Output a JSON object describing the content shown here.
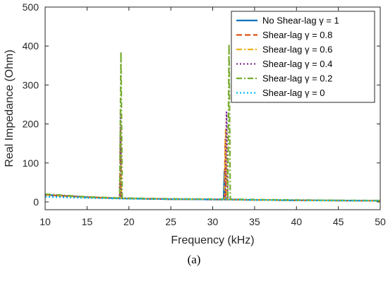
{
  "caption": "(a)",
  "chart_data": {
    "type": "line",
    "xlabel": "Frequency (kHz)",
    "ylabel": "Real Impedance (Ohm)",
    "xlim": [
      10,
      50
    ],
    "ylim": [
      -20,
      500
    ],
    "xticks": [
      10,
      15,
      20,
      25,
      30,
      35,
      40,
      45,
      50
    ],
    "yticks": [
      0,
      100,
      200,
      300,
      400,
      500
    ],
    "grid": false,
    "legend_position": "top-right",
    "series": [
      {
        "name": "No Shear-lag γ = 1",
        "color": "#0072BD",
        "dash": "solid",
        "x": [
          10,
          15,
          18.9,
          19.0,
          19.1,
          25,
          31.3,
          31.4,
          31.5,
          35,
          40,
          45,
          50
        ],
        "y": [
          18,
          12,
          9,
          9,
          9,
          7,
          6,
          80,
          6,
          5,
          4,
          3.5,
          3
        ]
      },
      {
        "name": "Shear-lag γ = 0.8",
        "color": "#D95319",
        "dash": "dash",
        "x": [
          10,
          15,
          18.9,
          19.0,
          19.1,
          25,
          31.4,
          31.5,
          31.6,
          35,
          40,
          45,
          50
        ],
        "y": [
          18,
          12,
          9,
          150,
          9,
          7,
          6,
          160,
          6,
          5,
          4,
          3.5,
          3
        ]
      },
      {
        "name": "Shear-lag γ = 0.6",
        "color": "#EDB120",
        "dash": "dashdot",
        "x": [
          10,
          15,
          18.9,
          19.0,
          19.1,
          25,
          31.4,
          31.55,
          31.7,
          35,
          40,
          45,
          50
        ],
        "y": [
          18,
          12,
          9,
          190,
          9,
          7,
          6,
          190,
          6,
          5,
          4,
          3.5,
          3
        ]
      },
      {
        "name": "Shear-lag γ = 0.4",
        "color": "#7E2F8E",
        "dash": "dot",
        "x": [
          10,
          15,
          18.9,
          19.0,
          19.1,
          25,
          31.5,
          31.65,
          31.8,
          35,
          40,
          45,
          50
        ],
        "y": [
          18,
          12,
          9,
          225,
          9,
          7,
          6,
          230,
          6,
          5,
          4,
          3.5,
          3
        ]
      },
      {
        "name": "Shear-lag γ = 0.2",
        "color": "#77AC30",
        "dash": "dashdot",
        "x": [
          10,
          15,
          18.9,
          19.05,
          19.2,
          25,
          31.8,
          31.95,
          32.1,
          35,
          40,
          45,
          50
        ],
        "y": [
          20,
          13,
          10,
          385,
          10,
          8,
          7,
          405,
          7,
          6,
          5,
          4,
          3.5
        ]
      },
      {
        "name": "Shear-lag γ = 0",
        "color": "#00BFEF",
        "dash": "dot",
        "x": [
          10,
          15,
          20,
          25,
          30,
          35,
          40,
          45,
          50
        ],
        "y": [
          13,
          10,
          8,
          7,
          6,
          5,
          4,
          3.5,
          3
        ]
      }
    ]
  }
}
